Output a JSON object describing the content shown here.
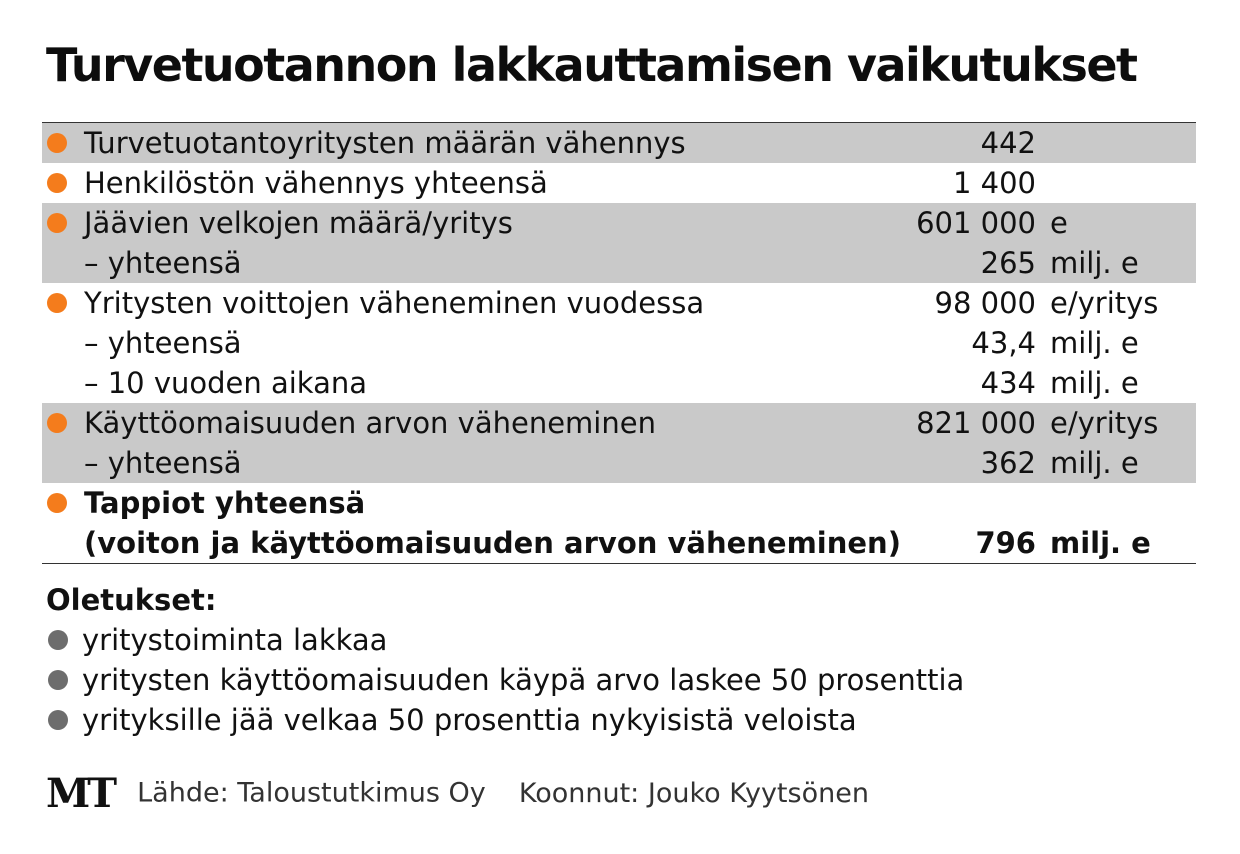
{
  "title": "Turvetuotannon lakkauttamisen vaikutukset",
  "colors": {
    "bullet_orange": "#f47c1c",
    "bullet_gray": "#6d6d6d",
    "band_gray": "#c9c9c9"
  },
  "chart_data": {
    "type": "table",
    "groups": [
      {
        "shaded": true,
        "rows": [
          {
            "bullet": true,
            "label": "Turvetuotantoyritysten määrän vähennys",
            "value": "442",
            "unit": ""
          }
        ]
      },
      {
        "shaded": false,
        "rows": [
          {
            "bullet": true,
            "label": "Henkilöstön vähennys yhteensä",
            "value": "1 400",
            "unit": ""
          }
        ]
      },
      {
        "shaded": true,
        "rows": [
          {
            "bullet": true,
            "label": "Jäävien velkojen määrä/yritys",
            "value": "601 000",
            "unit": "e"
          },
          {
            "bullet": false,
            "label": "– yhteensä",
            "value": "265",
            "unit": "milj. e"
          }
        ]
      },
      {
        "shaded": false,
        "rows": [
          {
            "bullet": true,
            "label": "Yritysten voittojen väheneminen vuodessa",
            "value": "98 000",
            "unit": "e/yritys"
          },
          {
            "bullet": false,
            "label": "– yhteensä",
            "value": "43,4",
            "unit": "milj. e"
          },
          {
            "bullet": false,
            "label": "– 10 vuoden aikana",
            "value": "434",
            "unit": "milj. e"
          }
        ]
      },
      {
        "shaded": true,
        "rows": [
          {
            "bullet": true,
            "label": "Käyttöomaisuuden arvon väheneminen",
            "value": "821 000",
            "unit": "e/yritys"
          },
          {
            "bullet": false,
            "label": "– yhteensä",
            "value": "362",
            "unit": "milj. e"
          }
        ]
      },
      {
        "shaded": false,
        "total": true,
        "rows": [
          {
            "bullet": true,
            "label": "Tappiot yhteensä",
            "value": "",
            "unit": ""
          },
          {
            "bullet": false,
            "label": "(voiton ja käyttöomaisuuden arvon väheneminen)",
            "value": "796",
            "unit": "milj. e"
          }
        ]
      }
    ]
  },
  "assumptions": {
    "title": "Oletukset:",
    "items": [
      "yritystoiminta lakkaa",
      "yritysten käyttöomaisuuden käypä arvo laskee 50 prosenttia",
      "yrityksille jää velkaa 50 prosenttia nykyisistä veloista"
    ]
  },
  "footer": {
    "logo": "MT",
    "source": "Lähde: Taloustutkimus Oy",
    "compiled": "Koonnut: Jouko Kyytsönen"
  }
}
